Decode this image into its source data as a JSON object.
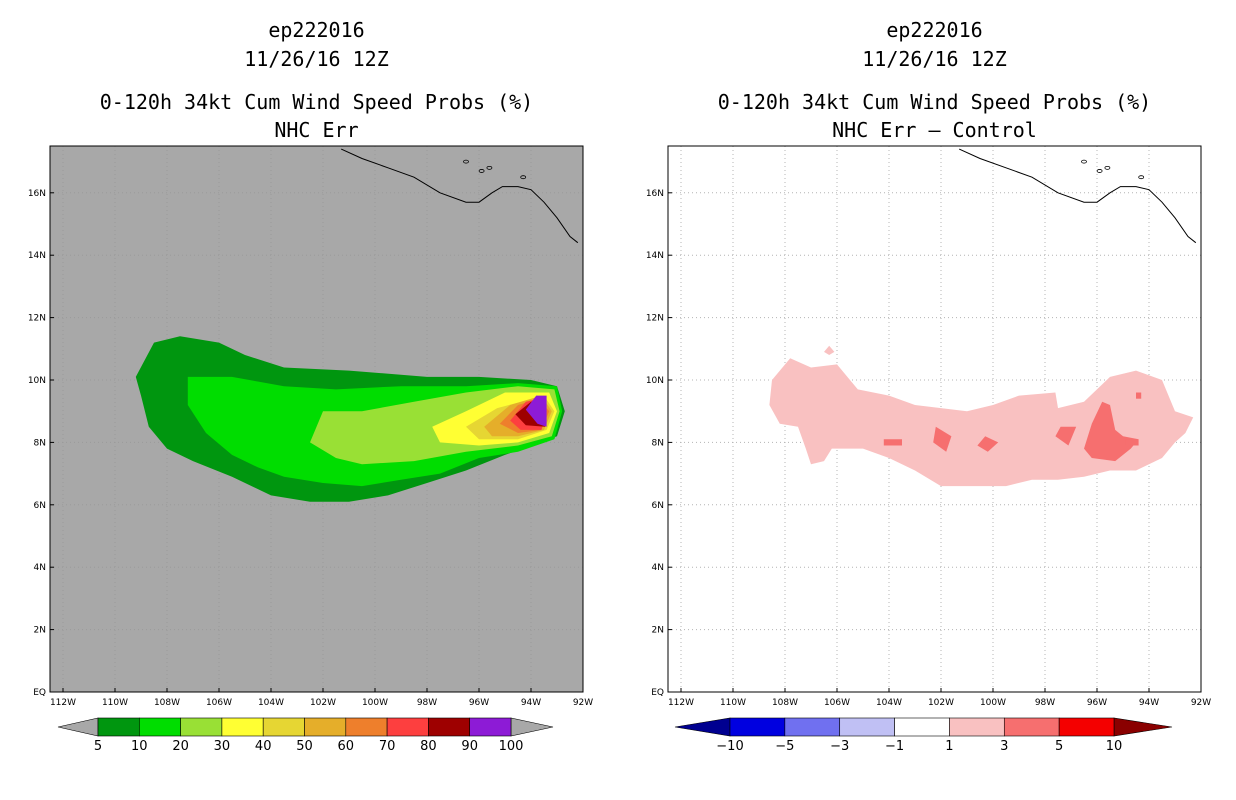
{
  "chart_data": [
    {
      "type": "heatmap",
      "storm_id": "ep222016",
      "date": "11/26/16 12Z",
      "title": "0-120h 34kt Cum Wind Speed Probs (%)",
      "subtitle": "NHC Err",
      "x_ticks": [
        "112W",
        "110W",
        "108W",
        "106W",
        "104W",
        "102W",
        "100W",
        "98W",
        "96W",
        "94W",
        "92W"
      ],
      "y_ticks": [
        "EQ",
        "2N",
        "4N",
        "6N",
        "8N",
        "10N",
        "12N",
        "14N",
        "16N"
      ],
      "xlim_lon": [
        -112.5,
        -92
      ],
      "ylim_lat": [
        0,
        17.5
      ],
      "background": "#a8a8a8",
      "colorbar": {
        "labels": [
          "5",
          "10",
          "20",
          "30",
          "40",
          "50",
          "60",
          "70",
          "80",
          "90",
          "100"
        ],
        "colors": [
          "#00960f",
          "#00dd00",
          "#99e035",
          "#ffff33",
          "#e6d633",
          "#e5ae2a",
          "#ee7f2c",
          "#fd3f3f",
          "#9e0000",
          "#8d1bd6"
        ],
        "extend_color": "#a8a8a8"
      },
      "contours": [
        {
          "level": 5,
          "color": "#00960f",
          "polygon": [
            [
              -108.5,
              11.2
            ],
            [
              -107.5,
              11.4
            ],
            [
              -106,
              11.2
            ],
            [
              -105,
              10.8
            ],
            [
              -103.5,
              10.4
            ],
            [
              -101,
              10.3
            ],
            [
              -98,
              10.1
            ],
            [
              -96,
              10.1
            ],
            [
              -94,
              10
            ],
            [
              -93,
              9.8
            ],
            [
              -92.7,
              9
            ],
            [
              -93,
              8.2
            ],
            [
              -94,
              7.9
            ],
            [
              -95,
              7.6
            ],
            [
              -96.5,
              7.1
            ],
            [
              -98,
              6.7
            ],
            [
              -99.5,
              6.3
            ],
            [
              -101,
              6.1
            ],
            [
              -102.5,
              6.1
            ],
            [
              -104,
              6.3
            ],
            [
              -105.5,
              6.9
            ],
            [
              -107,
              7.4
            ],
            [
              -108,
              7.8
            ],
            [
              -108.7,
              8.5
            ],
            [
              -109,
              9.5
            ],
            [
              -109.2,
              10.1
            ]
          ]
        },
        {
          "level": 10,
          "color": "#00dd00",
          "polygon": [
            [
              -107.2,
              10.1
            ],
            [
              -105.5,
              10.1
            ],
            [
              -103.5,
              9.8
            ],
            [
              -101.5,
              9.7
            ],
            [
              -99,
              9.8
            ],
            [
              -96.5,
              9.8
            ],
            [
              -94.5,
              9.9
            ],
            [
              -93,
              9.8
            ],
            [
              -92.8,
              9
            ],
            [
              -93.1,
              8.1
            ],
            [
              -94.5,
              7.7
            ],
            [
              -96,
              7.5
            ],
            [
              -97.5,
              7
            ],
            [
              -99,
              6.8
            ],
            [
              -100.5,
              6.6
            ],
            [
              -102,
              6.7
            ],
            [
              -103.5,
              6.9
            ],
            [
              -104.5,
              7.2
            ],
            [
              -105.5,
              7.6
            ],
            [
              -106.5,
              8.3
            ],
            [
              -107.2,
              9.2
            ]
          ]
        },
        {
          "level": 20,
          "color": "#99e035",
          "polygon": [
            [
              -102,
              9
            ],
            [
              -100.5,
              9
            ],
            [
              -98.5,
              9.3
            ],
            [
              -96.5,
              9.6
            ],
            [
              -94.5,
              9.8
            ],
            [
              -93.1,
              9.7
            ],
            [
              -92.9,
              9
            ],
            [
              -93.2,
              8.2
            ],
            [
              -94.5,
              7.9
            ],
            [
              -96.5,
              7.7
            ],
            [
              -98.5,
              7.4
            ],
            [
              -100.5,
              7.3
            ],
            [
              -101.5,
              7.5
            ],
            [
              -102.5,
              8
            ]
          ]
        },
        {
          "level": 30,
          "color": "#ffff33",
          "polygon": [
            [
              -97.8,
              8.5
            ],
            [
              -96.5,
              9
            ],
            [
              -95,
              9.6
            ],
            [
              -93.3,
              9.6
            ],
            [
              -93,
              9
            ],
            [
              -93.3,
              8.3
            ],
            [
              -94.5,
              8
            ],
            [
              -96,
              7.9
            ],
            [
              -97.5,
              8
            ]
          ]
        },
        {
          "level": 40,
          "color": "#e6d633",
          "polygon": [
            [
              -96.5,
              8.5
            ],
            [
              -95.3,
              9.1
            ],
            [
              -93.5,
              9.5
            ],
            [
              -93.1,
              9
            ],
            [
              -93.4,
              8.4
            ],
            [
              -94.5,
              8.1
            ],
            [
              -96,
              8.1
            ]
          ]
        },
        {
          "level": 50,
          "color": "#e5ae2a",
          "polygon": [
            [
              -95.8,
              8.5
            ],
            [
              -94.8,
              9.2
            ],
            [
              -93.6,
              9.5
            ],
            [
              -93.2,
              9
            ],
            [
              -93.5,
              8.4
            ],
            [
              -94.5,
              8.2
            ],
            [
              -95.5,
              8.2
            ]
          ]
        },
        {
          "level": 60,
          "color": "#ee7f2c",
          "polygon": [
            [
              -95.2,
              8.6
            ],
            [
              -94.5,
              9.2
            ],
            [
              -93.7,
              9.4
            ],
            [
              -93.3,
              9
            ],
            [
              -93.6,
              8.4
            ],
            [
              -94.5,
              8.3
            ]
          ]
        },
        {
          "level": 70,
          "color": "#fd3f3f",
          "polygon": [
            [
              -94.8,
              8.7
            ],
            [
              -94.2,
              9.3
            ],
            [
              -93.7,
              9.4
            ],
            [
              -93.4,
              9
            ],
            [
              -93.6,
              8.4
            ],
            [
              -94.4,
              8.4
            ]
          ]
        },
        {
          "level": 80,
          "color": "#9e0000",
          "polygon": [
            [
              -94.6,
              8.9
            ],
            [
              -94,
              9.3
            ],
            [
              -93.5,
              9.35
            ],
            [
              -93.45,
              8.5
            ],
            [
              -94.2,
              8.55
            ]
          ]
        },
        {
          "level": 90,
          "color": "#8d1bd6",
          "polygon": [
            [
              -94.2,
              9.05
            ],
            [
              -93.8,
              9.5
            ],
            [
              -93.4,
              9.5
            ],
            [
              -93.4,
              8.5
            ],
            [
              -93.75,
              8.6
            ]
          ]
        }
      ],
      "coastline": [
        [
          -101.3,
          17.4
        ],
        [
          -100.5,
          17.1
        ],
        [
          -99.5,
          16.8
        ],
        [
          -98.5,
          16.5
        ],
        [
          -97.5,
          16
        ],
        [
          -96.5,
          15.7
        ],
        [
          -96,
          15.7
        ],
        [
          -95.5,
          16
        ],
        [
          -95.1,
          16.2
        ],
        [
          -94.5,
          16.2
        ],
        [
          -94,
          16.1
        ],
        [
          -93.5,
          15.7
        ],
        [
          -93,
          15.2
        ],
        [
          -92.5,
          14.6
        ],
        [
          -92.2,
          14.4
        ]
      ]
    },
    {
      "type": "heatmap",
      "storm_id": "ep222016",
      "date": "11/26/16 12Z",
      "title": "0-120h 34kt Cum Wind Speed Probs (%)",
      "subtitle": "NHC Err – Control",
      "x_ticks": [
        "112W",
        "110W",
        "108W",
        "106W",
        "104W",
        "102W",
        "100W",
        "98W",
        "96W",
        "94W",
        "92W"
      ],
      "y_ticks": [
        "EQ",
        "2N",
        "4N",
        "6N",
        "8N",
        "10N",
        "12N",
        "14N",
        "16N"
      ],
      "xlim_lon": [
        -112.5,
        -92
      ],
      "ylim_lat": [
        0,
        17.5
      ],
      "background": "#ffffff",
      "colorbar": {
        "labels": [
          "−10",
          "−5",
          "−3",
          "−1",
          "1",
          "3",
          "5",
          "10"
        ],
        "colors": [
          "#0000e0",
          "#7070f0",
          "#c0c0f4",
          "#ffffff",
          "#f9c1c1",
          "#f66f6f",
          "#f40000"
        ],
        "extend_low": "#000090",
        "extend_high": "#8a0000"
      },
      "contours": [
        {
          "level": 1,
          "color": "#f9c1c1",
          "polygon": [
            [
              -108.5,
              10
            ],
            [
              -107.8,
              10.7
            ],
            [
              -107,
              10.4
            ],
            [
              -106,
              10.5
            ],
            [
              -105.2,
              9.7
            ],
            [
              -104,
              9.5
            ],
            [
              -103,
              9.2
            ],
            [
              -102,
              9.1
            ],
            [
              -101,
              9
            ],
            [
              -100,
              9.2
            ],
            [
              -99,
              9.5
            ],
            [
              -97.6,
              9.6
            ],
            [
              -97.5,
              9.1
            ],
            [
              -96.5,
              9.3
            ],
            [
              -95.5,
              10.1
            ],
            [
              -94.5,
              10.3
            ],
            [
              -93.5,
              10
            ],
            [
              -93,
              9
            ],
            [
              -92.3,
              8.8
            ],
            [
              -92.6,
              8.3
            ],
            [
              -93,
              8
            ],
            [
              -93.5,
              7.5
            ],
            [
              -94.5,
              7.1
            ],
            [
              -95.5,
              7.1
            ],
            [
              -96.5,
              6.9
            ],
            [
              -97.5,
              6.8
            ],
            [
              -98.5,
              6.8
            ],
            [
              -99.5,
              6.6
            ],
            [
              -101,
              6.6
            ],
            [
              -102,
              6.6
            ],
            [
              -103,
              7.1
            ],
            [
              -104,
              7.5
            ],
            [
              -105,
              7.8
            ],
            [
              -106.2,
              7.8
            ],
            [
              -106.5,
              7.4
            ],
            [
              -107,
              7.3
            ],
            [
              -107.2,
              7.8
            ],
            [
              -107.5,
              8.5
            ],
            [
              -108.2,
              8.6
            ],
            [
              -108.6,
              9.2
            ]
          ]
        },
        {
          "level": 1,
          "color": "#f9c1c1",
          "polygon": [
            [
              -106.3,
              11.1
            ],
            [
              -106.1,
              10.9
            ],
            [
              -106.3,
              10.8
            ],
            [
              -106.5,
              10.9
            ]
          ]
        },
        {
          "level": 3,
          "color": "#f66f6f",
          "polygon": [
            [
              -96.2,
              8.6
            ],
            [
              -95.8,
              9.3
            ],
            [
              -95.5,
              9.2
            ],
            [
              -95.3,
              8.4
            ],
            [
              -95,
              8.2
            ],
            [
              -94.4,
              8.1
            ],
            [
              -94.7,
              7.8
            ],
            [
              -95.3,
              7.4
            ],
            [
              -96.2,
              7.5
            ],
            [
              -96.5,
              7.8
            ]
          ]
        },
        {
          "level": 3,
          "color": "#f66f6f",
          "polygon": [
            [
              -102.2,
              8.5
            ],
            [
              -101.6,
              8.2
            ],
            [
              -101.8,
              7.7
            ],
            [
              -102.3,
              8
            ]
          ]
        },
        {
          "level": 3,
          "color": "#f66f6f",
          "polygon": [
            [
              -97.4,
              8.5
            ],
            [
              -96.8,
              8.5
            ],
            [
              -97.1,
              7.9
            ],
            [
              -97.6,
              8.2
            ]
          ]
        },
        {
          "level": 3,
          "color": "#f66f6f",
          "polygon": [
            [
              -100.3,
              8.2
            ],
            [
              -99.8,
              8
            ],
            [
              -100.2,
              7.7
            ],
            [
              -100.6,
              7.9
            ]
          ]
        },
        {
          "level": 3,
          "color": "#f66f6f",
          "polygon": [
            [
              -104.2,
              8.1
            ],
            [
              -103.5,
              8.1
            ],
            [
              -103.5,
              7.9
            ],
            [
              -104.2,
              7.9
            ]
          ]
        },
        {
          "level": 3,
          "color": "#f66f6f",
          "polygon": [
            [
              -94.9,
              8.1
            ],
            [
              -94.4,
              8.1
            ],
            [
              -94.4,
              7.9
            ],
            [
              -94.9,
              7.9
            ]
          ]
        },
        {
          "level": 3,
          "color": "#f66f6f",
          "polygon": [
            [
              -94.5,
              9.6
            ],
            [
              -94.3,
              9.6
            ],
            [
              -94.3,
              9.4
            ],
            [
              -94.5,
              9.4
            ]
          ]
        }
      ],
      "coastline": [
        [
          -101.3,
          17.4
        ],
        [
          -100.5,
          17.1
        ],
        [
          -99.5,
          16.8
        ],
        [
          -98.5,
          16.5
        ],
        [
          -97.5,
          16
        ],
        [
          -96.5,
          15.7
        ],
        [
          -96,
          15.7
        ],
        [
          -95.5,
          16
        ],
        [
          -95.1,
          16.2
        ],
        [
          -94.5,
          16.2
        ],
        [
          -94,
          16.1
        ],
        [
          -93.5,
          15.7
        ],
        [
          -93,
          15.2
        ],
        [
          -92.5,
          14.6
        ],
        [
          -92.2,
          14.4
        ]
      ]
    }
  ]
}
